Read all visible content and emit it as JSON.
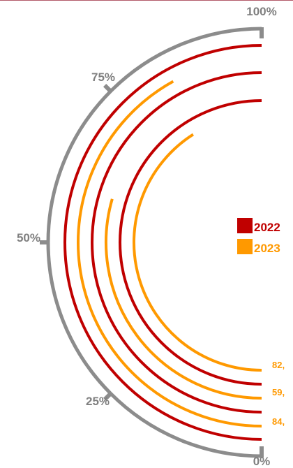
{
  "chart_data": {
    "type": "radial-bar",
    "title": "",
    "axis": {
      "ticks": [
        {
          "value": 0,
          "label": "0%"
        },
        {
          "value": 25,
          "label": "25%"
        },
        {
          "value": 50,
          "label": "50%"
        },
        {
          "value": 75,
          "label": "75%"
        },
        {
          "value": 100,
          "label": "100%"
        }
      ],
      "range": [
        0,
        100
      ]
    },
    "legend": {
      "placement": "right",
      "entries": [
        {
          "name": "2022",
          "color": "#c00000"
        },
        {
          "name": "2023",
          "color": "#ff9900"
        }
      ]
    },
    "series": [
      {
        "name": "2022",
        "color": "#c00000",
        "values": [
          100,
          100,
          100
        ]
      },
      {
        "name": "2023",
        "color": "#ff9900",
        "values": [
          84,
          59,
          82
        ]
      }
    ],
    "value_labels": [
      "84,",
      "59,",
      "82,"
    ]
  }
}
